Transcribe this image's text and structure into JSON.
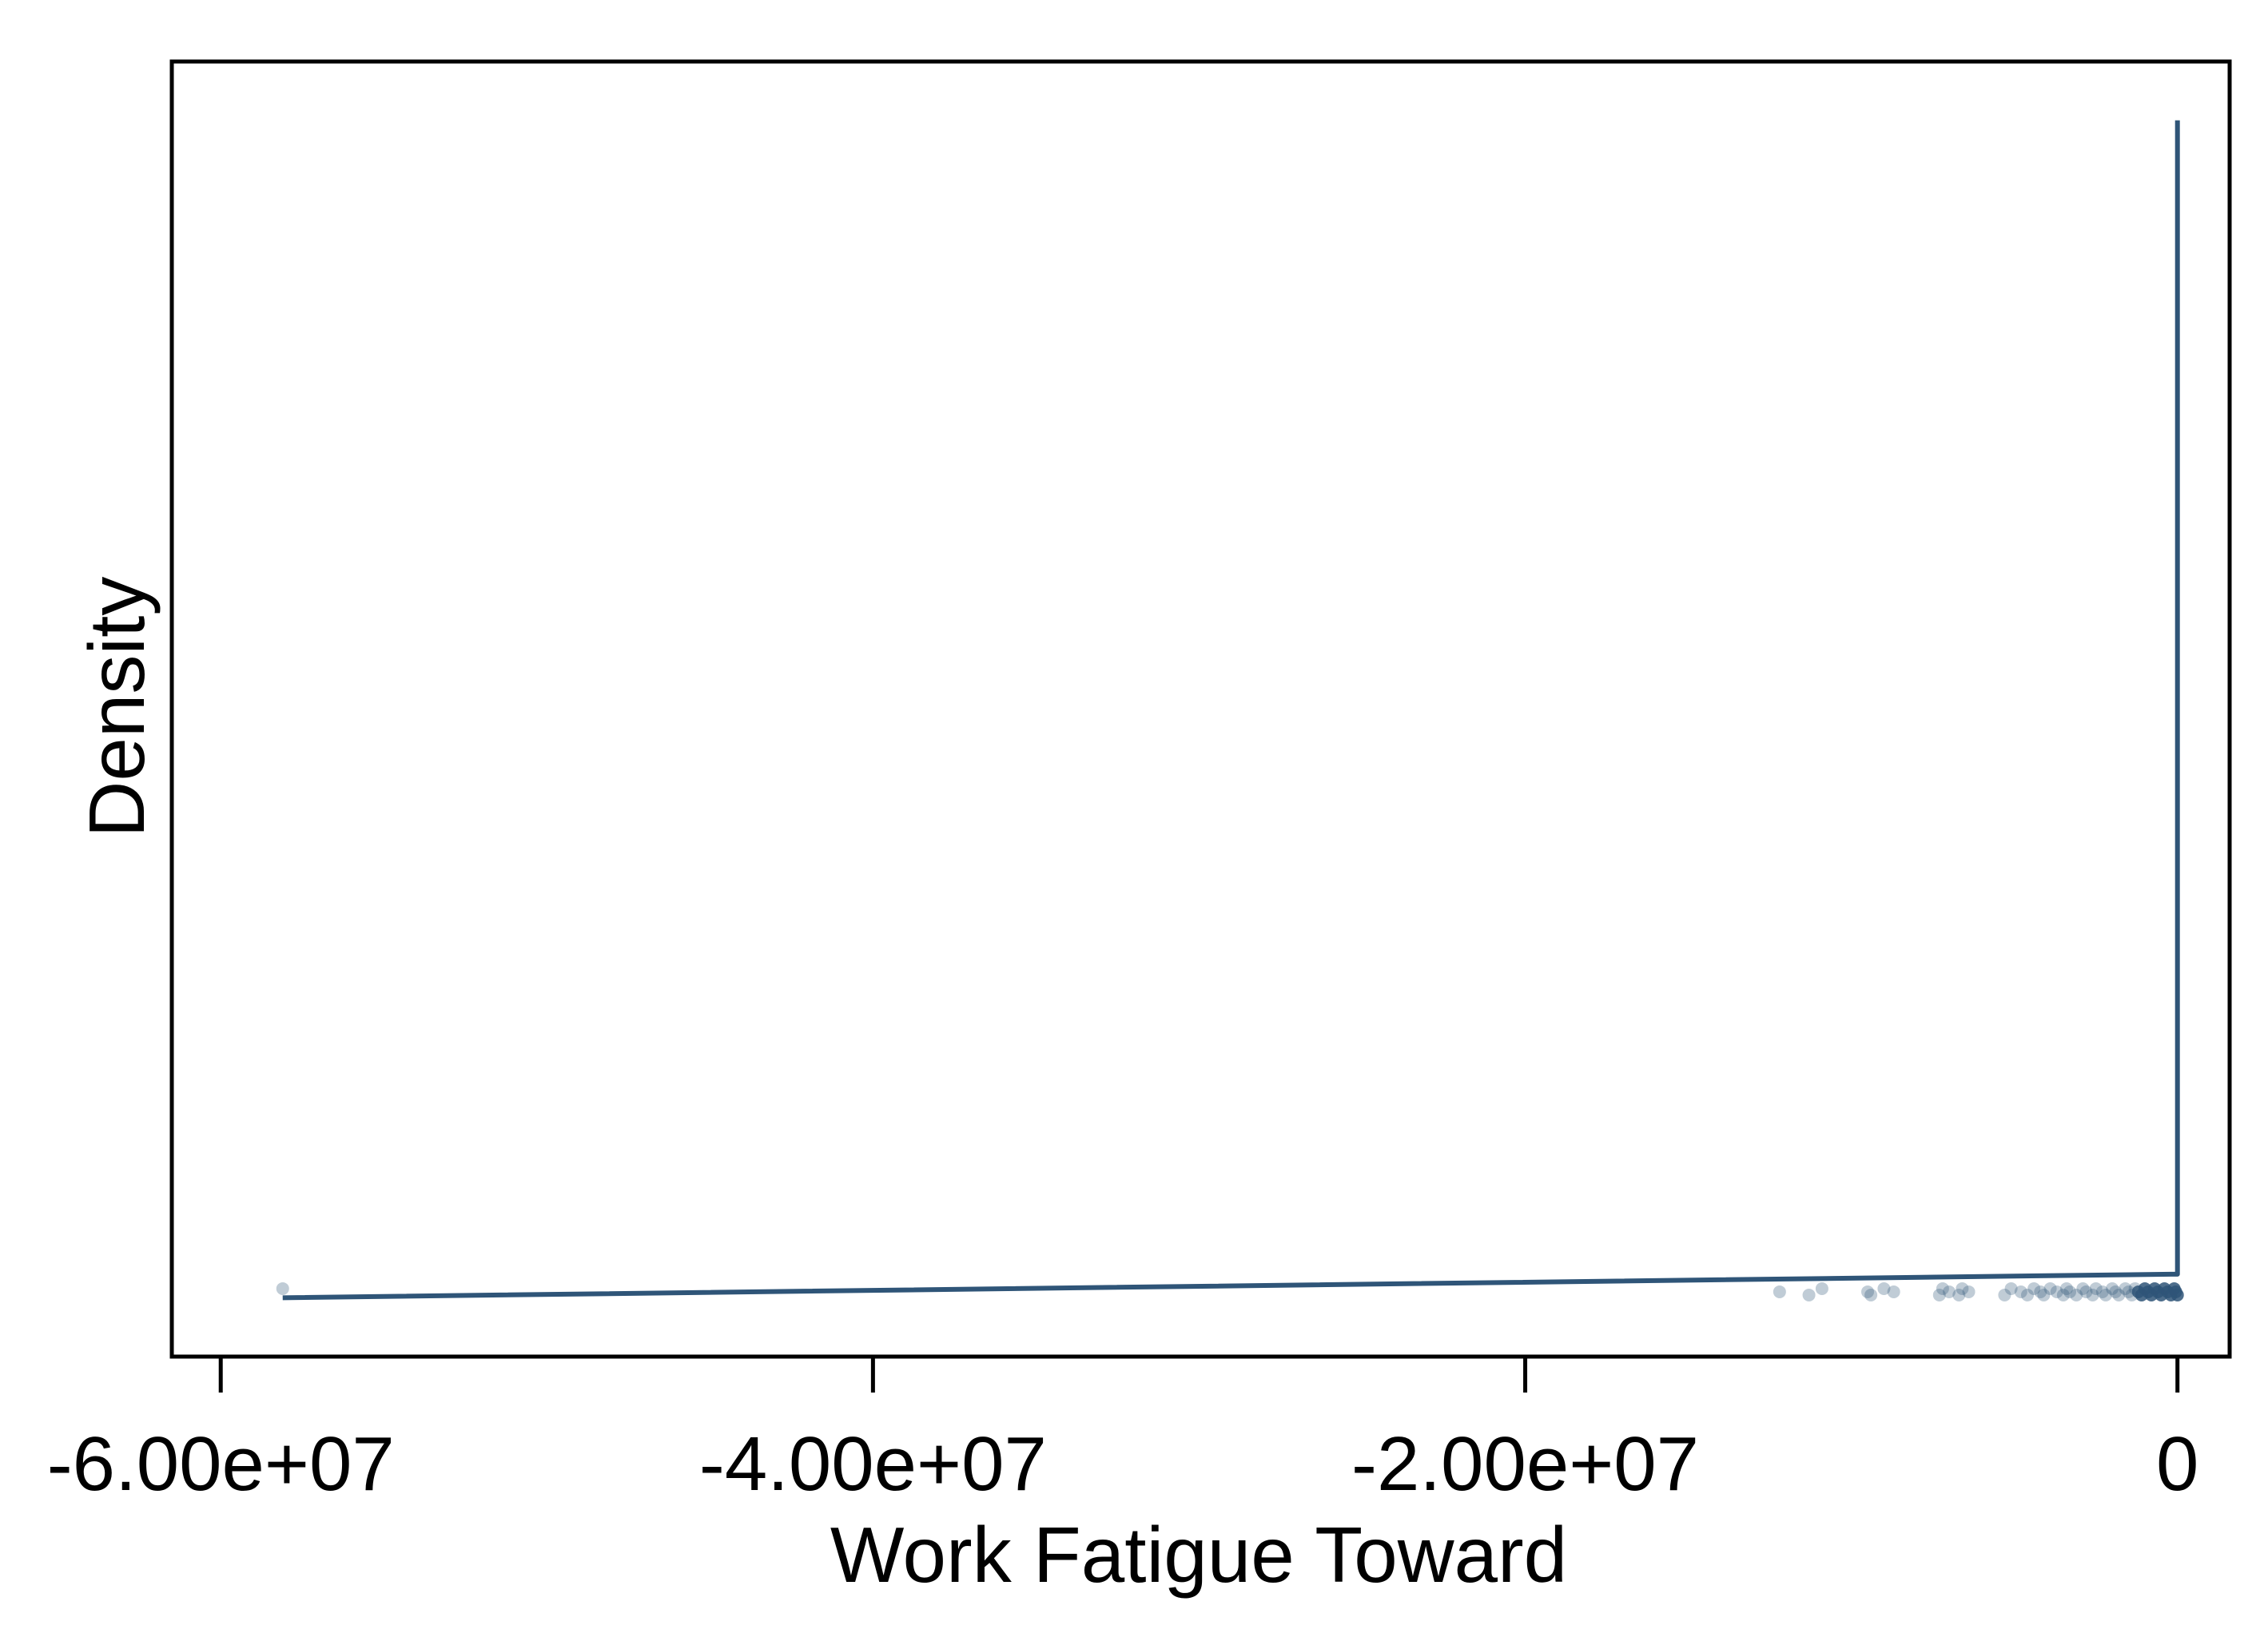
{
  "chart_data": {
    "type": "line",
    "title": "",
    "xlabel": "Work Fatigue Toward",
    "ylabel": "Density",
    "xlim": [
      -61500000,
      1600000
    ],
    "ylim": [
      -0.05,
      1.05
    ],
    "y_ticks_shown": false,
    "grid": false,
    "legend": "none",
    "x_ticks": [
      {
        "value": -60000000,
        "label": "-6.00e+07"
      },
      {
        "value": -40000000,
        "label": "-4.00e+07"
      },
      {
        "value": -20000000,
        "label": "-2.00e+07"
      },
      {
        "value": 0,
        "label": "0"
      }
    ],
    "series": [
      {
        "style": "line",
        "color": "#2f5578",
        "x": [
          -58100000,
          -200000,
          0,
          0
        ],
        "y": [
          0,
          0.02,
          0.02,
          1
        ]
      }
    ],
    "rug_points": {
      "color": "#2f5578",
      "x": [
        -58100000,
        -12200000,
        -11300000,
        -10900000,
        -9500000,
        -9400000,
        -9000000,
        -8700000,
        -7300000,
        -7200000,
        -7000000,
        -6700000,
        -6600000,
        -6400000,
        -5300000,
        -5100000,
        -4800000,
        -4600000,
        -4400000,
        -4200000,
        -4100000,
        -3900000,
        -3700000,
        -3500000,
        -3400000,
        -3300000,
        -3100000,
        -2900000,
        -2800000,
        -2600000,
        -2500000,
        -2300000,
        -2200000,
        -2000000,
        -1900000,
        -1800000,
        -1600000,
        -1500000,
        -1400000,
        -1300000,
        -1200000,
        -1100000,
        -1000000,
        -900000,
        -800000,
        -700000,
        -600000,
        -500000,
        -400000,
        -300000,
        -200000,
        -100000,
        -50000,
        0
      ]
    }
  }
}
